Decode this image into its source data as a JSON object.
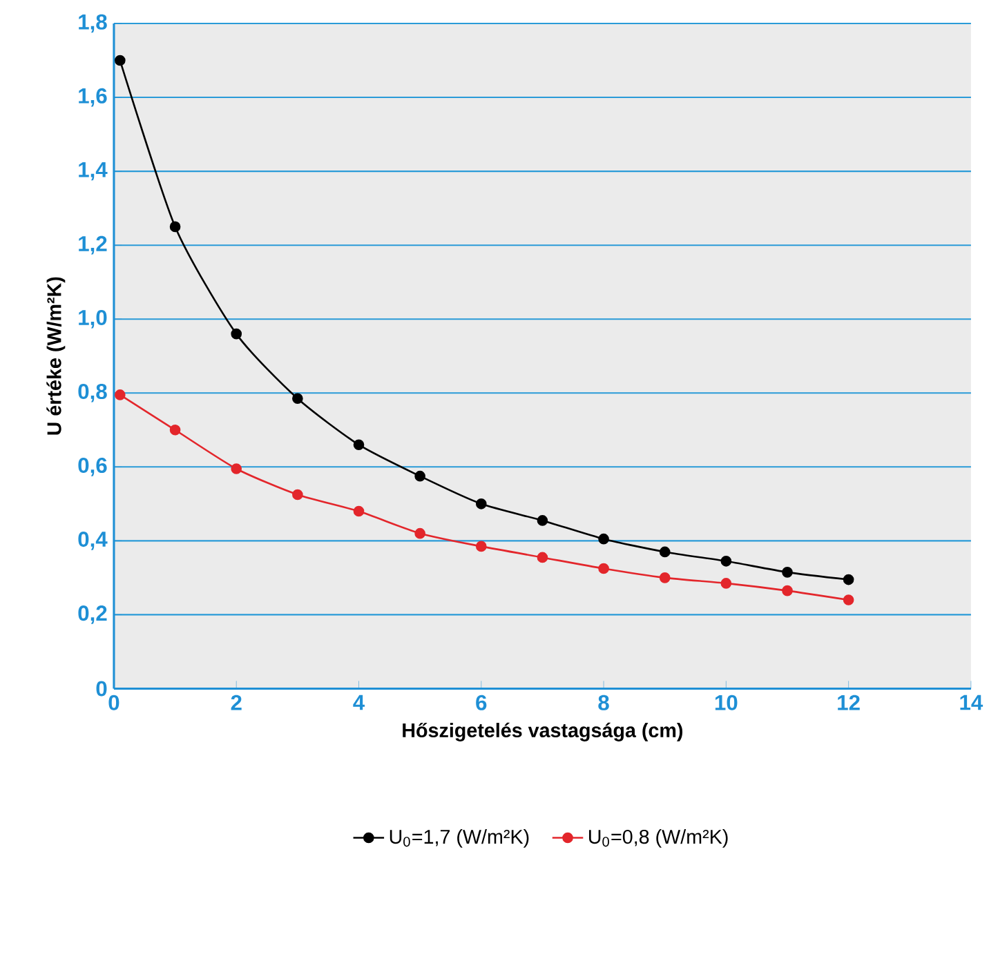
{
  "chart_data": {
    "type": "line",
    "xlabel": "Hőszigetelés vastagsága (cm)",
    "ylabel": "U értéke (W/m²K)",
    "x": [
      0.1,
      1,
      2,
      3,
      4,
      5,
      6,
      7,
      8,
      9,
      10,
      11,
      12
    ],
    "series": [
      {
        "name": "U$_{0}$=1,7 (W/m²K)",
        "color": "#000000",
        "values": [
          1.7,
          1.25,
          0.96,
          0.785,
          0.66,
          0.575,
          0.5,
          0.455,
          0.405,
          0.37,
          0.345,
          0.315,
          0.295
        ]
      },
      {
        "name": "U$_{0}$=0,8 (W/m²K)",
        "color": "#e3262b",
        "values": [
          0.795,
          0.7,
          0.595,
          0.525,
          0.48,
          0.42,
          0.385,
          0.355,
          0.325,
          0.3,
          0.285,
          0.265,
          0.24
        ]
      }
    ],
    "xlim": [
      0,
      14
    ],
    "xticks": [
      0,
      2,
      4,
      6,
      8,
      10,
      12,
      14
    ],
    "ylim": [
      0,
      1.8
    ],
    "yticks": [
      0,
      {
        "value": 0.2,
        "label": "0,2"
      },
      {
        "value": 0.4,
        "label": "0,4"
      },
      {
        "value": 0.6,
        "label": "0,6"
      },
      {
        "value": 0.8,
        "label": "0,8"
      },
      {
        "value": 1.0,
        "label": "1,0"
      },
      {
        "value": 1.2,
        "label": "1,2"
      },
      {
        "value": 1.4,
        "label": "1,4"
      },
      {
        "value": 1.6,
        "label": "1,6"
      },
      {
        "value": 1.8,
        "label": "1,8"
      }
    ],
    "grid": "y",
    "legend": "bottom",
    "marker": "circle",
    "line_style": "solid"
  }
}
